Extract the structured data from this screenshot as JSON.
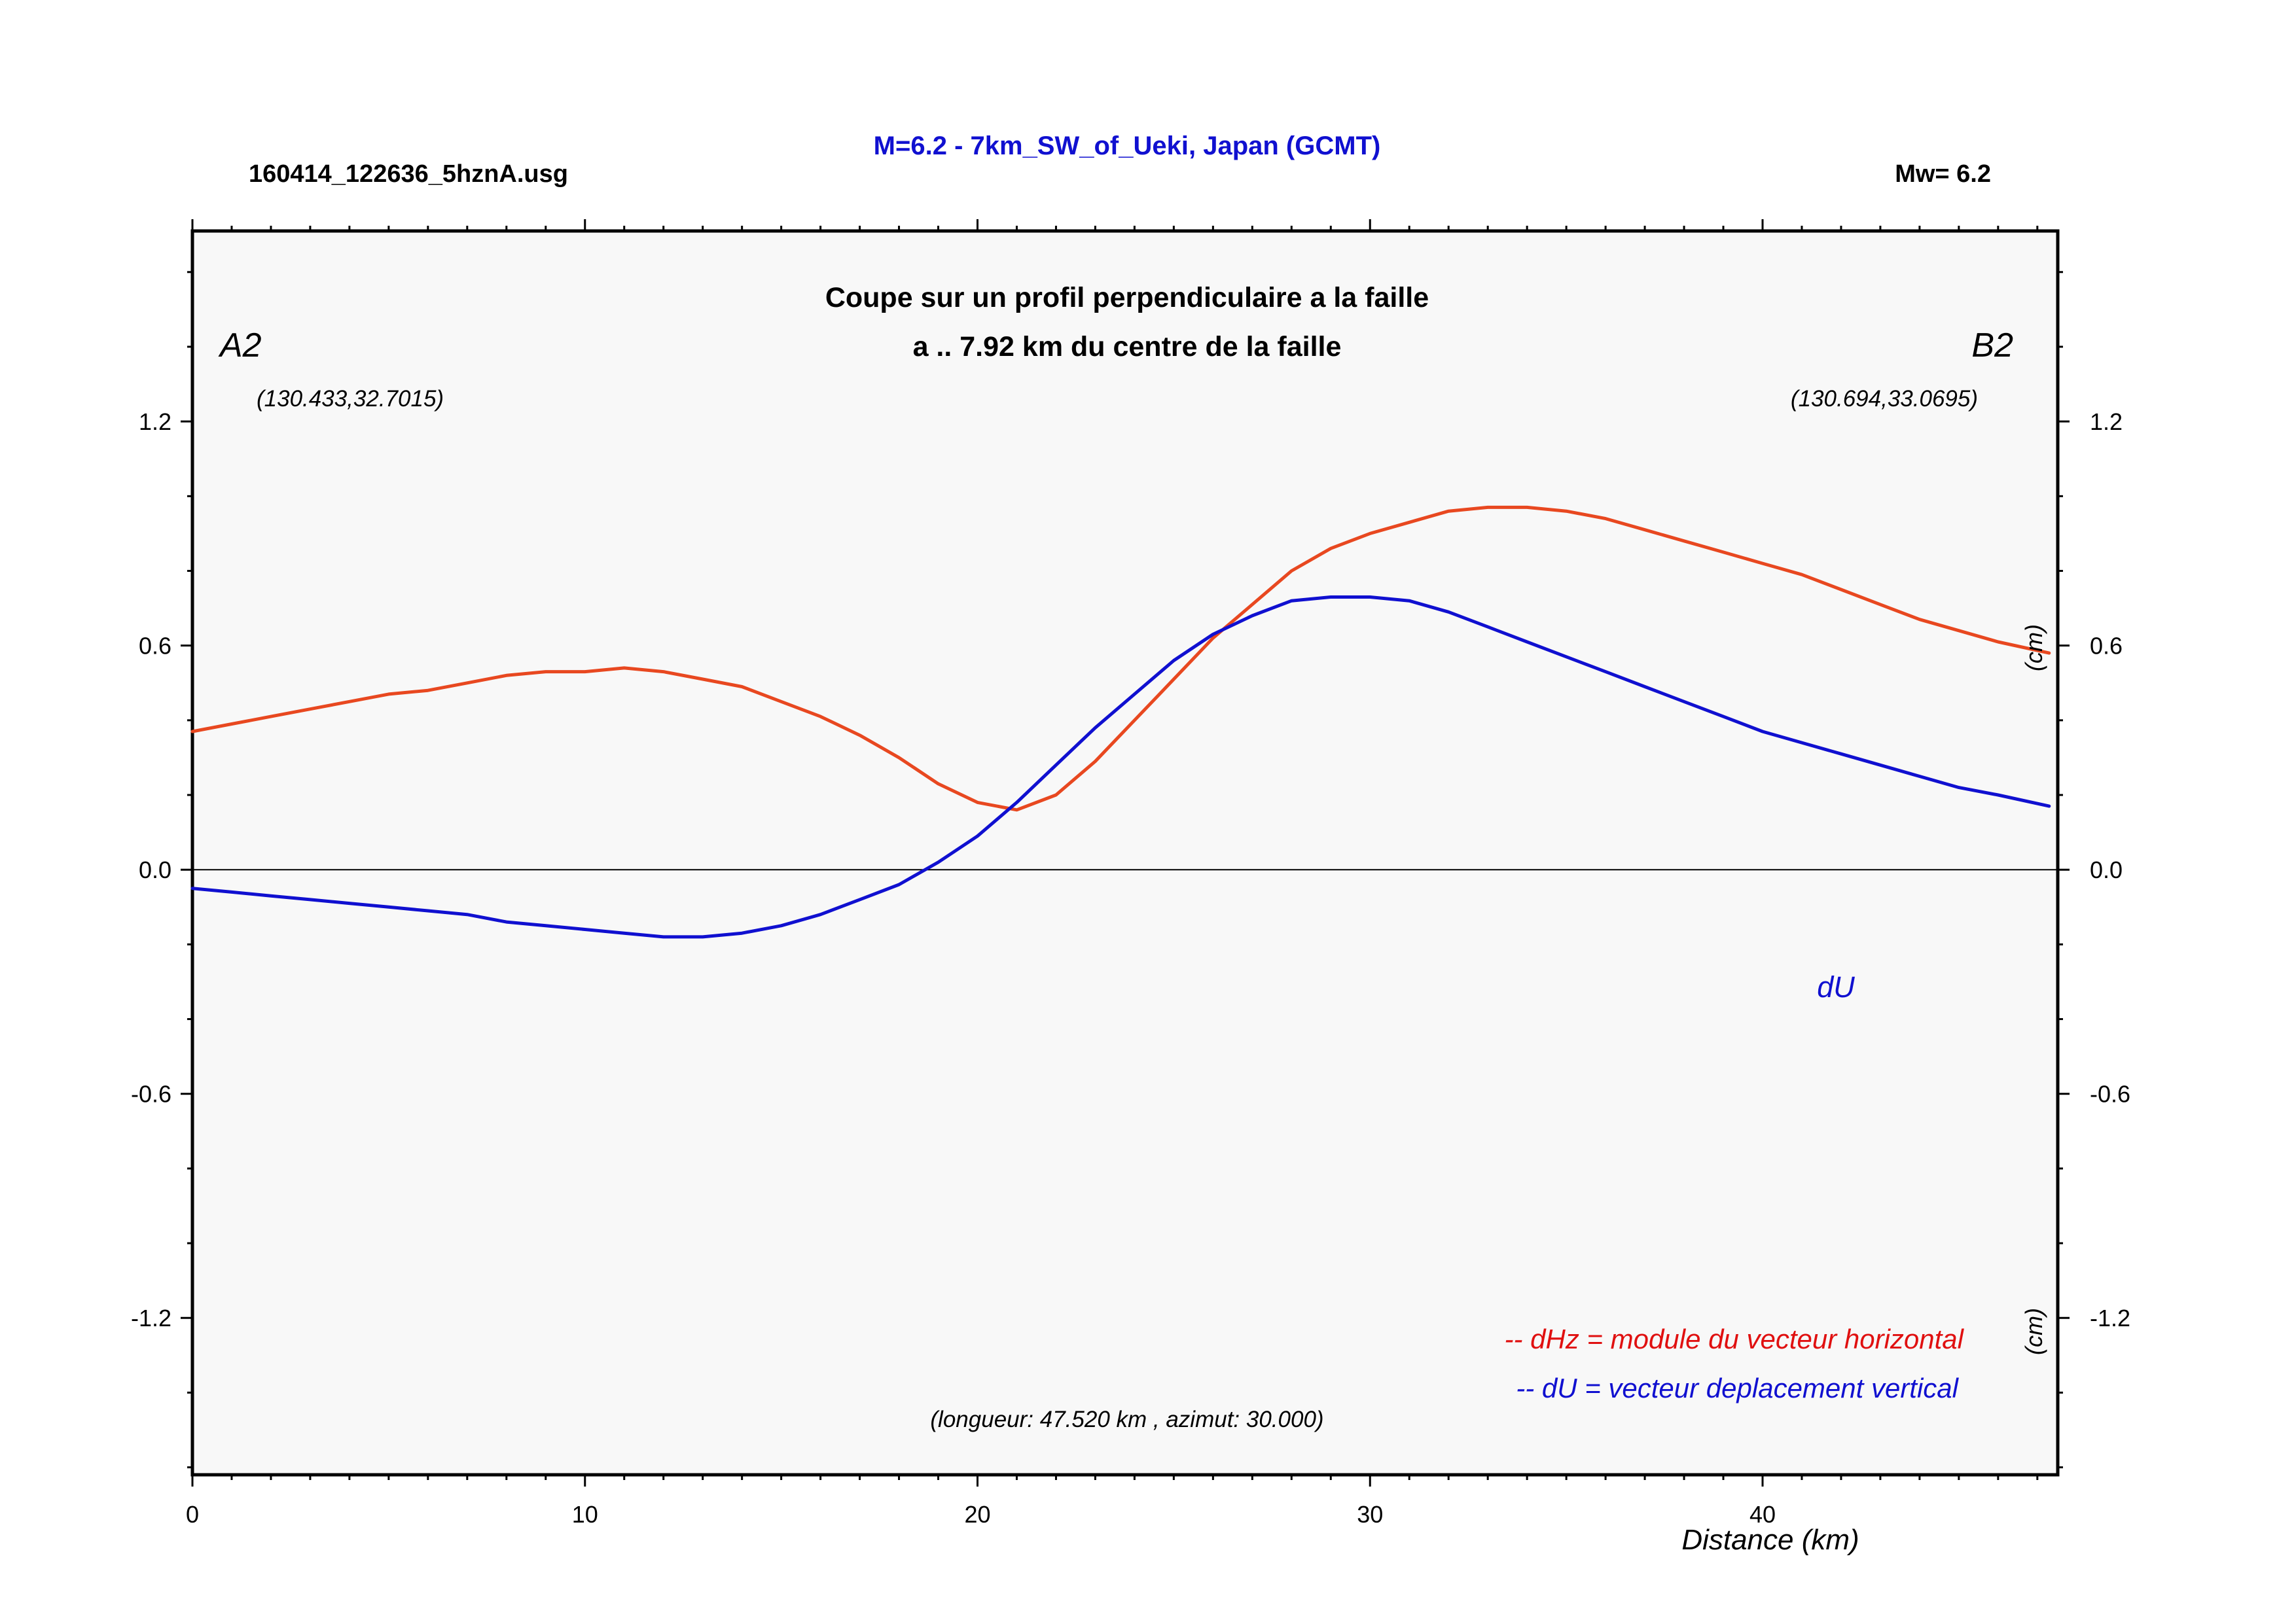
{
  "header": {
    "file_label": "160414_122636_5hznA.usg",
    "title": "M=6.2 - 7km_SW_of_Ueki, Japan (GCMT)",
    "magnitude_label": "Mw= 6.2"
  },
  "plot": {
    "subtitle_line1": "Coupe sur un profil perpendiculaire a la faille",
    "subtitle_line2": "a .. 7.92 km du centre de la faille",
    "point_a_label": "A2",
    "point_a_coords": "(130.433,32.7015)",
    "point_b_label": "B2",
    "point_b_coords": "(130.694,33.0695)",
    "length_note": "(longueur: 47.520 km , azimut: 30.000)",
    "du_label": "dU",
    "legend_dhz": "-- dHz = module du vecteur horizontal",
    "legend_du": "-- dU =  vecteur deplacement vertical",
    "right_unit_upper": "(cm)",
    "right_unit_lower": "(cm)",
    "xlabel": "Distance (km)"
  },
  "colors": {
    "title": "#1010d0",
    "dhz": "#e84820",
    "du": "#1010d0",
    "legend_dhz": "#e01010",
    "plot_bg": "#f8f8f8"
  },
  "chart_data": {
    "type": "line",
    "xlim": [
      0,
      47.52
    ],
    "ylim": [
      -1.62,
      1.71
    ],
    "x_ticks": [
      0,
      10,
      20,
      30,
      40
    ],
    "y_ticks": [
      1.2,
      0.6,
      0.0,
      -0.6,
      -1.2
    ],
    "y_tick_labels": [
      "1.2",
      "0.6",
      "0.0",
      "-0.6",
      "-1.2"
    ],
    "zero_line": true,
    "series": [
      {
        "name": "dHz",
        "x": [
          0,
          1,
          2,
          3,
          4,
          5,
          6,
          7,
          8,
          9,
          10,
          11,
          12,
          13,
          14,
          15,
          16,
          17,
          18,
          19,
          20,
          21,
          22,
          23,
          24,
          25,
          26,
          27,
          28,
          29,
          30,
          31,
          32,
          33,
          34,
          35,
          36,
          37,
          38,
          39,
          40,
          41,
          42,
          43,
          44,
          45,
          46,
          47.3
        ],
        "y": [
          0.37,
          0.39,
          0.41,
          0.43,
          0.45,
          0.47,
          0.48,
          0.5,
          0.52,
          0.53,
          0.53,
          0.54,
          0.53,
          0.51,
          0.49,
          0.45,
          0.41,
          0.36,
          0.3,
          0.23,
          0.18,
          0.16,
          0.2,
          0.29,
          0.4,
          0.51,
          0.62,
          0.71,
          0.8,
          0.86,
          0.9,
          0.93,
          0.96,
          0.97,
          0.97,
          0.96,
          0.94,
          0.91,
          0.88,
          0.85,
          0.82,
          0.79,
          0.75,
          0.71,
          0.67,
          0.64,
          0.61,
          0.58
        ]
      },
      {
        "name": "dU",
        "x": [
          0,
          1,
          2,
          3,
          4,
          5,
          6,
          7,
          8,
          9,
          10,
          11,
          12,
          13,
          14,
          15,
          16,
          17,
          18,
          19,
          20,
          21,
          22,
          23,
          24,
          25,
          26,
          27,
          28,
          29,
          30,
          31,
          32,
          33,
          34,
          35,
          36,
          37,
          38,
          39,
          40,
          41,
          42,
          43,
          44,
          45,
          46,
          47.3
        ],
        "y": [
          -0.05,
          -0.06,
          -0.07,
          -0.08,
          -0.09,
          -0.1,
          -0.11,
          -0.12,
          -0.14,
          -0.15,
          -0.16,
          -0.17,
          -0.18,
          -0.18,
          -0.17,
          -0.15,
          -0.12,
          -0.08,
          -0.04,
          0.02,
          0.09,
          0.18,
          0.28,
          0.38,
          0.47,
          0.56,
          0.63,
          0.68,
          0.72,
          0.73,
          0.73,
          0.72,
          0.69,
          0.65,
          0.61,
          0.57,
          0.53,
          0.49,
          0.45,
          0.41,
          0.37,
          0.34,
          0.31,
          0.28,
          0.25,
          0.22,
          0.2,
          0.17
        ]
      }
    ]
  }
}
